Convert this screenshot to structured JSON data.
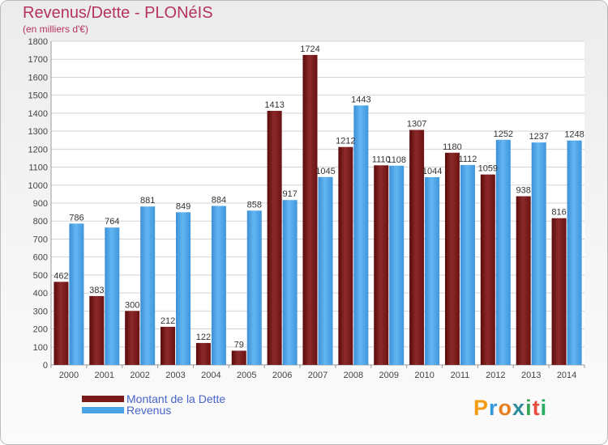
{
  "header": {
    "title": "Revenus/Dette - PLONéIS",
    "subtitle": "(en milliers d'€)"
  },
  "legend": {
    "items": [
      {
        "label": "Montant de la Dette",
        "color": "#7a1a1a"
      },
      {
        "label": "Revenus",
        "color": "#4aa3e6"
      }
    ]
  },
  "logo": {
    "text": "Proxiti",
    "colors": [
      "#f39c12",
      "#3498db",
      "#e67e22",
      "#2c8c99",
      "#3aa655",
      "#e74c3c",
      "#27ae60"
    ]
  },
  "chart_data": {
    "type": "bar",
    "title": "Revenus/Dette - PLONéIS",
    "subtitle": "(en milliers d'€)",
    "categories": [
      "2000",
      "2001",
      "2002",
      "2003",
      "2004",
      "2005",
      "2006",
      "2007",
      "2008",
      "2009",
      "2010",
      "2011",
      "2012",
      "2013",
      "2014"
    ],
    "series": [
      {
        "name": "Montant de la Dette",
        "color": "#7a1a1a",
        "values": [
          462,
          383,
          300,
          212,
          122,
          79,
          1413,
          1724,
          1212,
          1110,
          1307,
          1180,
          1059,
          938,
          816
        ]
      },
      {
        "name": "Revenus",
        "color": "#4aa3e6",
        "values": [
          786,
          764,
          881,
          849,
          884,
          858,
          917,
          1045,
          1443,
          1108,
          1044,
          1112,
          1252,
          1237,
          1248
        ]
      }
    ],
    "ylim": [
      0,
      1800
    ],
    "yticks": [
      0,
      100,
      200,
      300,
      400,
      500,
      600,
      700,
      800,
      900,
      1000,
      1100,
      1200,
      1300,
      1400,
      1500,
      1600,
      1700,
      1800
    ],
    "grid": true,
    "legend_position": "bottom-left"
  }
}
